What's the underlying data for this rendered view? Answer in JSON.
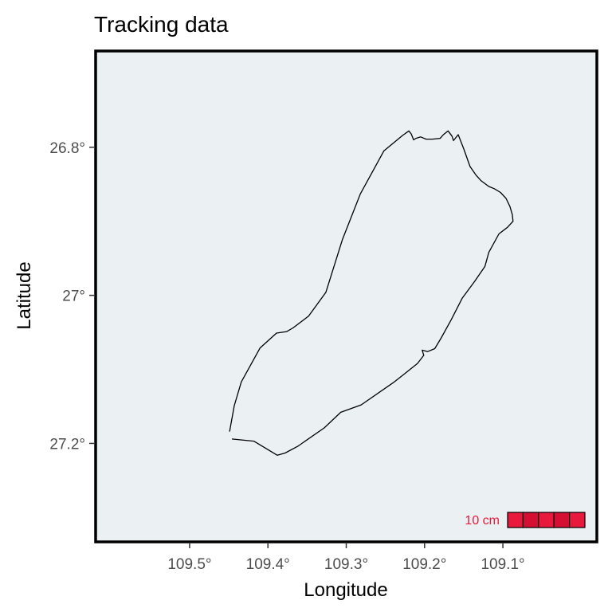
{
  "chart_data": {
    "type": "line",
    "title": "Tracking data",
    "xlabel": "Longitude",
    "ylabel": "Latitude",
    "xlim": [
      109.62,
      108.98
    ],
    "ylim": [
      27.333,
      26.67
    ],
    "x_reversed": true,
    "y_reversed": true,
    "x_ticks": [
      109.5,
      109.4,
      109.3,
      109.2,
      109.1
    ],
    "x_tick_labels": [
      "109.5°",
      "109.4°",
      "109.3°",
      "109.2°",
      "109.1°"
    ],
    "y_ticks": [
      26.8,
      27.0,
      27.2
    ],
    "y_tick_labels": [
      "26.8°",
      "27°",
      "27.2°"
    ],
    "grid": false,
    "series": [
      {
        "x": [
          109.449,
          109.443,
          109.434,
          109.41,
          109.389,
          109.376,
          109.368,
          109.348,
          109.326,
          109.305,
          109.282,
          109.252,
          109.228,
          109.22,
          109.217,
          109.214,
          109.211,
          109.205,
          109.198,
          109.19,
          109.18,
          109.176,
          109.17,
          109.165,
          109.163,
          109.157,
          109.15,
          109.142,
          109.134,
          109.128,
          109.118,
          109.111,
          109.103,
          109.096,
          109.091,
          109.088,
          109.087,
          109.094,
          109.105,
          109.118,
          109.123,
          109.136,
          109.152,
          109.166,
          109.179,
          109.187,
          109.196,
          109.203,
          109.201,
          109.209,
          109.222,
          109.24,
          109.281,
          109.307,
          109.328,
          109.362,
          109.378,
          109.388,
          109.418,
          109.446
        ],
        "y": [
          27.184,
          27.149,
          27.117,
          27.071,
          27.051,
          27.049,
          27.044,
          27.028,
          26.996,
          26.925,
          26.863,
          26.805,
          26.784,
          26.778,
          26.782,
          26.79,
          26.788,
          26.786,
          26.789,
          26.789,
          26.788,
          26.783,
          26.778,
          26.785,
          26.791,
          26.783,
          26.802,
          26.826,
          26.838,
          26.845,
          26.853,
          26.856,
          26.861,
          26.869,
          26.88,
          26.891,
          26.9,
          26.908,
          26.917,
          26.942,
          26.961,
          26.981,
          27.004,
          27.033,
          27.058,
          27.072,
          27.076,
          27.074,
          27.081,
          27.092,
          27.103,
          27.118,
          27.148,
          27.158,
          27.179,
          27.204,
          27.213,
          27.216,
          27.197,
          27.194
        ]
      }
    ],
    "scale_bar": {
      "label": "10 cm",
      "segments": 5,
      "color": "#e8193c",
      "position": "bottom-right"
    },
    "line_color": "#000000",
    "panel_fill": "#ebf0f2"
  }
}
